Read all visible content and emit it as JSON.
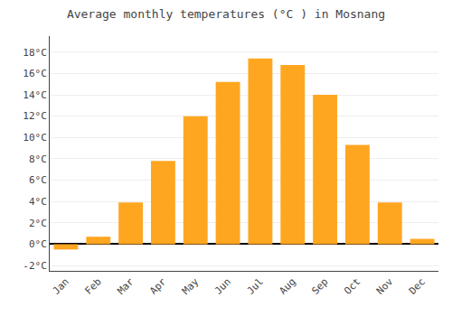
{
  "chart_data": {
    "type": "bar",
    "title": "Average monthly temperatures (°C ) in Mosnang",
    "categories": [
      "Jan",
      "Feb",
      "Mar",
      "Apr",
      "May",
      "Jun",
      "Jul",
      "Aug",
      "Sep",
      "Oct",
      "Nov",
      "Dec"
    ],
    "values": [
      -0.5,
      0.7,
      3.9,
      7.8,
      12.0,
      15.2,
      17.4,
      16.8,
      14.0,
      9.3,
      3.9,
      0.5
    ],
    "color": "#FFA620",
    "ylim": [
      -2.5,
      19.5
    ],
    "yticks": [
      {
        "value": -2,
        "label": "-2°C"
      },
      {
        "value": 0,
        "label": "0°C"
      },
      {
        "value": 2,
        "label": "2°C"
      },
      {
        "value": 4,
        "label": "4°C"
      },
      {
        "value": 6,
        "label": "6°C"
      },
      {
        "value": 8,
        "label": "8°C"
      },
      {
        "value": 10,
        "label": "10°C"
      },
      {
        "value": 12,
        "label": "12°C"
      },
      {
        "value": 14,
        "label": "14°C"
      },
      {
        "value": 16,
        "label": "16°C"
      },
      {
        "value": 18,
        "label": "18°C"
      }
    ],
    "grid": true
  }
}
